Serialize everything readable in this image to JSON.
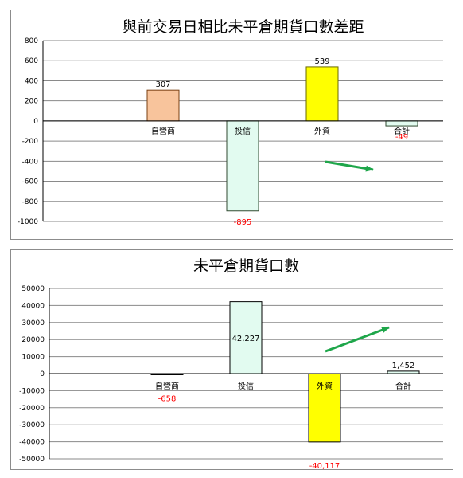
{
  "colors": {
    "grid": "#8a8a8a",
    "negative_label": "#ff0000",
    "arrow": "#1ea64a",
    "border": "#8c8c8c"
  },
  "chart_data": [
    {
      "type": "bar",
      "title": "與前交易日相比未平倉期貨口數差距",
      "categories": [
        "自營商",
        "投信",
        "外資",
        "合計"
      ],
      "values": [
        307,
        -895,
        539,
        -49
      ],
      "data_labels": [
        "307",
        "-895",
        "539",
        "-49"
      ],
      "bar_colors": [
        "#f8c49c",
        "#e2fbf0",
        "#ffff00",
        "#e2fbf0"
      ],
      "bar_borders": [
        "#7a3f12",
        "#304a30",
        "#6a6a00",
        "#304a30"
      ],
      "ylim": [
        -1000,
        800
      ],
      "y_ticks": [
        "800",
        "600",
        "400",
        "200",
        "0",
        "-200",
        "-400",
        "-600",
        "-800",
        "-1000"
      ],
      "grid": true,
      "legend": "none",
      "annotation": "green arrow pointing right-downward"
    },
    {
      "type": "bar",
      "title": "未平倉期貨口數",
      "categories": [
        "自營商",
        "投信",
        "外資",
        "合計"
      ],
      "values": [
        -658,
        42227,
        -40117,
        1452
      ],
      "data_labels": [
        "-658",
        "42,227",
        "-40,117",
        "1,452"
      ],
      "bar_colors": [
        "#ffffff",
        "#e2fbf0",
        "#ffff00",
        "#e2fbf0"
      ],
      "bar_borders": [
        "#000000",
        "#000000",
        "#000000",
        "#000000"
      ],
      "ylim": [
        -50000,
        50000
      ],
      "y_ticks": [
        "50000",
        "40000",
        "30000",
        "20000",
        "10000",
        "0",
        "-10000",
        "-20000",
        "-30000",
        "-40000",
        "-50000"
      ],
      "grid": true,
      "legend": "none",
      "annotation": "green arrow pointing right-upward"
    }
  ]
}
